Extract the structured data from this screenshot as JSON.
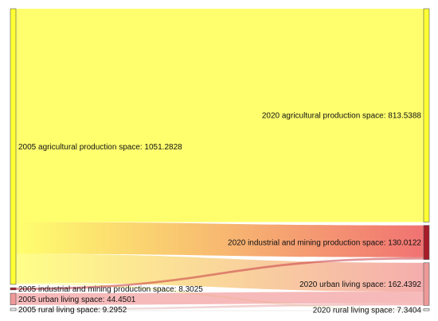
{
  "chart_data": {
    "type": "sankey",
    "left_nodes": [
      {
        "id": "a05",
        "label": "2005 agricultural production space: 1051.2828",
        "value": 1051.2828,
        "color": "#ffff33"
      },
      {
        "id": "i05",
        "label": "2005 industrial and mining production space: 8.3025",
        "value": 8.3025,
        "color": "#a61c2a"
      },
      {
        "id": "u05",
        "label": "2005 urban living space: 44.4501",
        "value": 44.4501,
        "color": "#ee9999"
      },
      {
        "id": "r05",
        "label": "2005 rural living space: 9.2952",
        "value": 9.2952,
        "color": "#e8e8e8"
      }
    ],
    "right_nodes": [
      {
        "id": "a20",
        "label": "2020 agricultural production space: 813.5388",
        "value": 813.5388,
        "color": "#ffff33"
      },
      {
        "id": "i20",
        "label": "2020 industrial and mining production space: 130.0122",
        "value": 130.0122,
        "color": "#a61c2a"
      },
      {
        "id": "u20",
        "label": "2020 urban living space: 162.4392",
        "value": 162.4392,
        "color": "#ee9999"
      },
      {
        "id": "r20",
        "label": "2020 rural living space: 7.3404",
        "value": 7.3404,
        "color": "#e8e8e8"
      }
    ],
    "links": [
      {
        "source": "a05",
        "target": "a20",
        "value": 813.5388
      },
      {
        "source": "a05",
        "target": "i20",
        "value": 121.7097
      },
      {
        "source": "a05",
        "target": "u20",
        "value": 109.9391
      },
      {
        "source": "a05",
        "target": "r20",
        "value": 6.0952
      },
      {
        "source": "i05",
        "target": "i20",
        "value": 8.3025
      },
      {
        "source": "u05",
        "target": "u20",
        "value": 44.4501
      },
      {
        "source": "r05",
        "target": "u20",
        "value": 8.05
      },
      {
        "source": "r05",
        "target": "r20",
        "value": 1.2452
      }
    ]
  }
}
